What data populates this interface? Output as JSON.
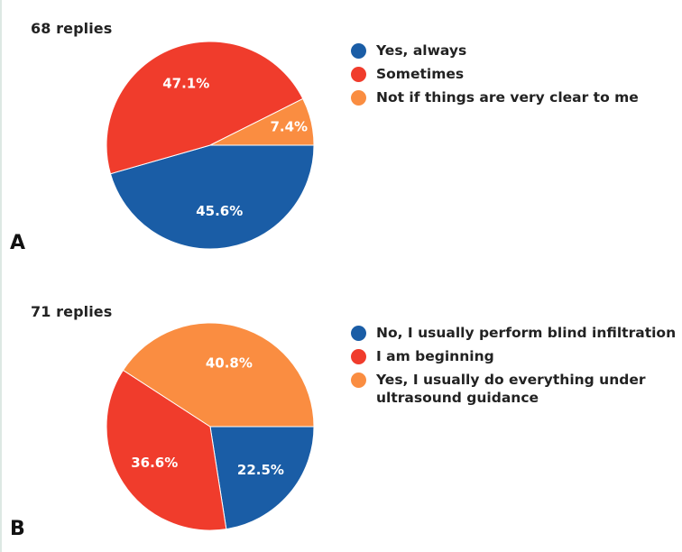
{
  "panels": [
    {
      "letter": "A",
      "replies": "68 replies",
      "chart_data": {
        "type": "pie",
        "categories": [
          "Yes, always",
          "Sometimes",
          "Not if things are very clear to me"
        ],
        "values": [
          45.6,
          47.1,
          7.4
        ],
        "labels": [
          "45.6%",
          "47.1%",
          "7.4%"
        ],
        "colors": [
          "#1a5da6",
          "#f03c2c",
          "#fa8d41"
        ],
        "legend_position": "right"
      }
    },
    {
      "letter": "B",
      "replies": "71 replies",
      "chart_data": {
        "type": "pie",
        "categories": [
          "No, I usually perform blind infiltration",
          "I am beginning",
          "Yes, I usually do everything under ultrasound guidance"
        ],
        "values": [
          22.5,
          36.6,
          40.8
        ],
        "labels": [
          "22.5%",
          "36.6%",
          "40.8%"
        ],
        "colors": [
          "#1a5da6",
          "#f03c2c",
          "#fa8d41"
        ],
        "legend_position": "right"
      }
    }
  ]
}
